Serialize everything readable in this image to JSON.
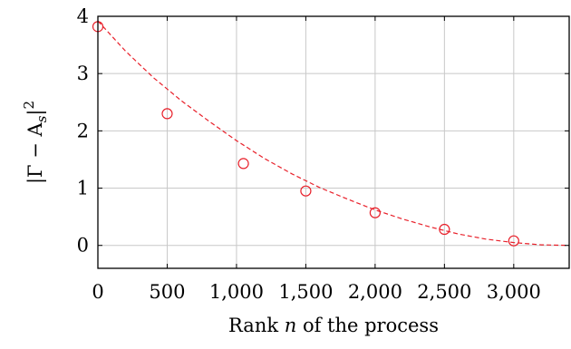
{
  "chart_data": {
    "type": "scatter",
    "xlabel": "Rank n of the process",
    "xlabel_parts": {
      "before": "Rank ",
      "var": "n",
      "after": " of the process"
    },
    "ylabel": "|Γ − A_s|²",
    "ylabel_parts": {
      "lhs": "|Γ − A",
      "sub": "s",
      "rhs": "|",
      "sup": "2"
    },
    "xlim": [
      0,
      3400
    ],
    "ylim": [
      -0.4,
      4
    ],
    "xticks": [
      0,
      500,
      1000,
      1500,
      2000,
      2500,
      3000
    ],
    "xtick_labels": [
      "0",
      "500",
      "1,000",
      "1,500",
      "2,000",
      "2,500",
      "3,000"
    ],
    "yticks": [
      0,
      1,
      2,
      3,
      4
    ],
    "ytick_labels": [
      "0",
      "1",
      "2",
      "3",
      "4"
    ],
    "grid": true,
    "series": [
      {
        "kind": "markers",
        "marker": "circle-open",
        "color": "#e8202a",
        "x": [
          0,
          500,
          1050,
          1500,
          2000,
          2500,
          3000
        ],
        "y": [
          3.82,
          2.3,
          1.43,
          0.95,
          0.57,
          0.28,
          0.08
        ]
      },
      {
        "kind": "fit-line",
        "style": "dashed",
        "color": "#e8202a",
        "x": [
          0,
          200,
          400,
          600,
          800,
          1000,
          1200,
          1400,
          1600,
          1800,
          2000,
          2200,
          2400,
          2600,
          2800,
          3000,
          3200,
          3400
        ],
        "y": [
          3.92,
          3.39,
          2.93,
          2.53,
          2.17,
          1.83,
          1.52,
          1.25,
          1.01,
          0.81,
          0.62,
          0.46,
          0.32,
          0.2,
          0.11,
          0.05,
          0.01,
          0.0
        ]
      }
    ]
  }
}
